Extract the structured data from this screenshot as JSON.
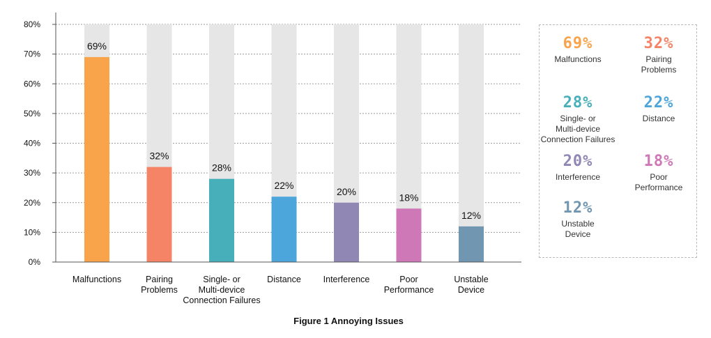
{
  "chart_data": {
    "type": "bar",
    "title": "Figure 1 Annoying Issues",
    "categories": [
      "Malfunctions",
      "Pairing\nProblems",
      "Single- or\nMulti-device\nConnection Failures",
      "Distance",
      "Interference",
      "Poor\nPerformance",
      "Unstable\nDevice"
    ],
    "values": [
      69,
      32,
      28,
      22,
      20,
      18,
      12
    ],
    "data_labels": [
      "69%",
      "32%",
      "28%",
      "22%",
      "20%",
      "18%",
      "12%"
    ],
    "colors": [
      "#F9A34B",
      "#F58466",
      "#47AFBA",
      "#4DA6DB",
      "#9187B5",
      "#CF78B8",
      "#7196B2"
    ],
    "background_bar_color": "#E6E6E6",
    "ylim": [
      0,
      80
    ],
    "yticks": [
      0,
      10,
      20,
      30,
      40,
      50,
      60,
      70,
      80
    ],
    "ytick_labels": [
      "0%",
      "10%",
      "20%",
      "30%",
      "40%",
      "50%",
      "60%",
      "70%",
      "80%"
    ],
    "grid": true,
    "legend_placement": "right"
  },
  "legend": {
    "items": [
      {
        "pct": "69%",
        "name": "Malfunctions",
        "color": "#F9A34B"
      },
      {
        "pct": "32%",
        "name": "Pairing\nProblems",
        "color": "#F58466"
      },
      {
        "pct": "28%",
        "name": "Single- or\nMulti-device\nConnection Failures",
        "color": "#47AFBA"
      },
      {
        "pct": "22%",
        "name": "Distance",
        "color": "#4DA6DB"
      },
      {
        "pct": "20%",
        "name": "Interference",
        "color": "#9187B5"
      },
      {
        "pct": "18%",
        "name": "Poor\nPerformance",
        "color": "#CF78B8"
      },
      {
        "pct": "12%",
        "name": "Unstable\nDevice",
        "color": "#7196B2"
      }
    ]
  },
  "caption": "Figure 1 Annoying Issues"
}
